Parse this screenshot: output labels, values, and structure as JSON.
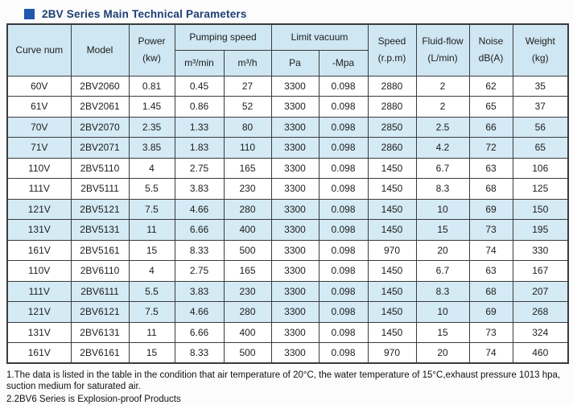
{
  "title": "2BV Series Main Technical Parameters",
  "accent_colors": {
    "title_text": "#1c3d74",
    "title_square": "#1f58ac",
    "header_bg": "#cfe7f2",
    "shaded_row_bg": "#d4eaf4",
    "border": "#3b3b3b"
  },
  "table": {
    "headers": {
      "curve_num": "Curve num",
      "model": "Model",
      "power_l1": "Power",
      "power_l2": "(kw)",
      "pumping_speed": "Pumping speed",
      "m3_min": "m³/min",
      "m3_h": "m³/h",
      "limit_vacuum": "Limit vacuum",
      "pa": "Pa",
      "mpa": "-Mpa",
      "speed_l1": "Speed",
      "speed_l2": "(r.p.m)",
      "fluid_l1": "Fluid-flow",
      "fluid_l2": "(L/min)",
      "noise_l1": "Noise",
      "noise_l2": "dB(A)",
      "weight_l1": "Weight",
      "weight_l2": "(kg)"
    },
    "column_keys": [
      "curve-num",
      "model",
      "power",
      "m3-min",
      "m3-h",
      "pa",
      "mpa",
      "speed",
      "fluid-flow",
      "noise",
      "weight"
    ],
    "rows": [
      {
        "shaded": false,
        "cells": [
          "60V",
          "2BV2060",
          "0.81",
          "0.45",
          "27",
          "3300",
          "0.098",
          "2880",
          "2",
          "62",
          "35"
        ]
      },
      {
        "shaded": false,
        "cells": [
          "61V",
          "2BV2061",
          "1.45",
          "0.86",
          "52",
          "3300",
          "0.098",
          "2880",
          "2",
          "65",
          "37"
        ]
      },
      {
        "shaded": true,
        "cells": [
          "70V",
          "2BV2070",
          "2.35",
          "1.33",
          "80",
          "3300",
          "0.098",
          "2850",
          "2.5",
          "66",
          "56"
        ]
      },
      {
        "shaded": true,
        "cells": [
          "71V",
          "2BV2071",
          "3.85",
          "1.83",
          "110",
          "3300",
          "0.098",
          "2860",
          "4.2",
          "72",
          "65"
        ]
      },
      {
        "shaded": false,
        "cells": [
          "110V",
          "2BV5110",
          "4",
          "2.75",
          "165",
          "3300",
          "0.098",
          "1450",
          "6.7",
          "63",
          "106"
        ]
      },
      {
        "shaded": false,
        "cells": [
          "111V",
          "2BV5111",
          "5.5",
          "3.83",
          "230",
          "3300",
          "0.098",
          "1450",
          "8.3",
          "68",
          "125"
        ]
      },
      {
        "shaded": true,
        "cells": [
          "121V",
          "2BV5121",
          "7.5",
          "4.66",
          "280",
          "3300",
          "0.098",
          "1450",
          "10",
          "69",
          "150"
        ]
      },
      {
        "shaded": true,
        "cells": [
          "131V",
          "2BV5131",
          "11",
          "6.66",
          "400",
          "3300",
          "0.098",
          "1450",
          "15",
          "73",
          "195"
        ]
      },
      {
        "shaded": false,
        "cells": [
          "161V",
          "2BV5161",
          "15",
          "8.33",
          "500",
          "3300",
          "0.098",
          "970",
          "20",
          "74",
          "330"
        ]
      },
      {
        "shaded": false,
        "cells": [
          "110V",
          "2BV6110",
          "4",
          "2.75",
          "165",
          "3300",
          "0.098",
          "1450",
          "6.7",
          "63",
          "167"
        ]
      },
      {
        "shaded": true,
        "cells": [
          "111V",
          "2BV6111",
          "5.5",
          "3.83",
          "230",
          "3300",
          "0.098",
          "1450",
          "8.3",
          "68",
          "207"
        ]
      },
      {
        "shaded": true,
        "cells": [
          "121V",
          "2BV6121",
          "7.5",
          "4.66",
          "280",
          "3300",
          "0.098",
          "1450",
          "10",
          "69",
          "268"
        ]
      },
      {
        "shaded": false,
        "cells": [
          "131V",
          "2BV6131",
          "11",
          "6.66",
          "400",
          "3300",
          "0.098",
          "1450",
          "15",
          "73",
          "324"
        ]
      },
      {
        "shaded": false,
        "cells": [
          "161V",
          "2BV6161",
          "15",
          "8.33",
          "500",
          "3300",
          "0.098",
          "970",
          "20",
          "74",
          "460"
        ]
      }
    ]
  },
  "notes": [
    "1.The data is listed in the table in the condition that air temperature of 20°C, the water temperature of 15°C,exhaust pressure 1013 hpa, suction medium for saturated air.",
    "2.2BV6 Series is Explosion-proof Products"
  ]
}
